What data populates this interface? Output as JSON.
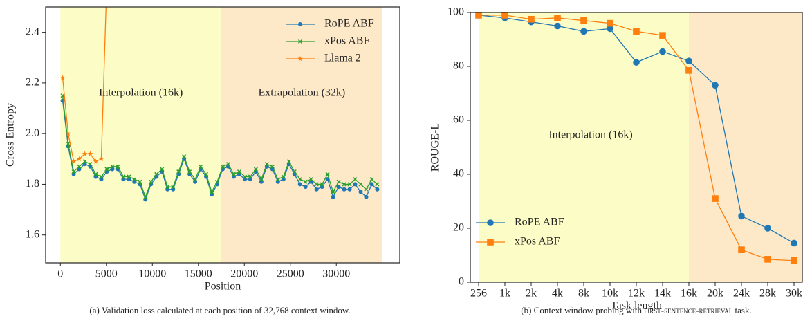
{
  "chart_data": [
    {
      "type": "line",
      "xlabel": "Position",
      "ylabel": "Cross Entropy",
      "caption": "(a) Validation loss calculated at each position of 32,768 context window.",
      "x": [
        250,
        850,
        1450,
        2050,
        2650,
        3250,
        3850,
        4450,
        5050,
        5650,
        6250,
        6850,
        7450,
        8050,
        8650,
        9250,
        9850,
        10450,
        11050,
        11650,
        12250,
        12850,
        13450,
        14050,
        14650,
        15250,
        15850,
        16450,
        17050,
        17650,
        18250,
        18850,
        19450,
        20050,
        20650,
        21250,
        21850,
        22450,
        23050,
        23650,
        24250,
        24850,
        25450,
        26050,
        26650,
        27250,
        27850,
        28450,
        29050,
        29650,
        30250,
        30850,
        31450,
        32050,
        32650,
        33250,
        33850,
        34450
      ],
      "series": [
        {
          "name": "RoPE ABF",
          "color": "#1f77b4",
          "marker": "dot",
          "values": [
            2.13,
            1.95,
            1.84,
            1.86,
            1.88,
            1.87,
            1.83,
            1.82,
            1.85,
            1.86,
            1.86,
            1.82,
            1.82,
            1.81,
            1.8,
            1.74,
            1.8,
            1.83,
            1.85,
            1.78,
            1.78,
            1.84,
            1.9,
            1.84,
            1.81,
            1.86,
            1.83,
            1.76,
            1.8,
            1.86,
            1.87,
            1.83,
            1.84,
            1.82,
            1.82,
            1.85,
            1.81,
            1.87,
            1.86,
            1.81,
            1.82,
            1.88,
            1.84,
            1.8,
            1.79,
            1.81,
            1.78,
            1.79,
            1.82,
            1.75,
            1.79,
            1.78,
            1.78,
            1.8,
            1.77,
            1.75,
            1.8,
            1.78
          ]
        },
        {
          "name": "xPos ABF",
          "color": "#2ca02c",
          "marker": "x",
          "values": [
            2.15,
            1.96,
            1.85,
            1.87,
            1.89,
            1.88,
            1.84,
            1.83,
            1.86,
            1.87,
            1.87,
            1.83,
            1.83,
            1.82,
            1.81,
            1.75,
            1.81,
            1.84,
            1.86,
            1.79,
            1.79,
            1.85,
            1.91,
            1.85,
            1.82,
            1.87,
            1.84,
            1.77,
            1.81,
            1.87,
            1.88,
            1.84,
            1.85,
            1.83,
            1.83,
            1.86,
            1.82,
            1.88,
            1.87,
            1.82,
            1.83,
            1.89,
            1.85,
            1.82,
            1.81,
            1.82,
            1.8,
            1.8,
            1.84,
            1.77,
            1.81,
            1.8,
            1.8,
            1.82,
            1.8,
            1.78,
            1.82,
            1.8
          ]
        },
        {
          "name": "Llama 2",
          "color": "#ff7f0e",
          "marker": "star",
          "values": [
            2.22,
            2.0,
            1.89,
            1.9,
            1.92,
            1.92,
            1.89,
            1.9,
            2.6,
            null,
            null,
            null,
            null,
            null,
            null,
            null,
            null,
            null,
            null,
            null,
            null,
            null,
            null,
            null,
            null,
            null,
            null,
            null,
            null,
            null,
            null,
            null,
            null,
            null,
            null,
            null,
            null,
            null,
            null,
            null,
            null,
            null,
            null,
            null,
            null,
            null,
            null,
            null,
            null,
            null,
            null,
            null,
            null,
            null,
            null,
            null,
            null,
            null
          ]
        }
      ],
      "spans": [
        {
          "label": "Interpolation (16k)",
          "from": 0,
          "to": 17500,
          "color": "#fcfcc6"
        },
        {
          "label": "Extrapolation (32k)",
          "from": 17500,
          "to": 35000,
          "color": "#fde8c8"
        }
      ],
      "xlim": [
        -1600,
        36900
      ],
      "ylim": [
        1.49,
        2.5
      ],
      "xticks": [
        0,
        5000,
        10000,
        15000,
        20000,
        25000,
        30000
      ],
      "yticks": [
        1.6,
        1.8,
        {
          "value": 2,
          "label": "2.0"
        },
        2.2,
        2.4
      ],
      "legend": "upper right"
    },
    {
      "type": "line",
      "xlabel": "Task length",
      "ylabel": "ROUGE-L",
      "caption_parts": [
        "(b) Context window probing with ",
        "first-sentence-retrieval",
        " task."
      ],
      "categories": [
        "256",
        "1k",
        "2k",
        "4k",
        "8k",
        "10k",
        "12k",
        "14k",
        "16k",
        "20k",
        "24k",
        "28k",
        "30k"
      ],
      "series": [
        {
          "name": "RoPE ABF",
          "color": "#1f77b4",
          "marker": "dot",
          "values": [
            99,
            98,
            96.5,
            95,
            93,
            94,
            81.5,
            85.5,
            82,
            73,
            24.5,
            20,
            14.5
          ]
        },
        {
          "name": "xPos ABF",
          "color": "#ff7f0e",
          "marker": "square",
          "values": [
            99,
            99,
            97.5,
            98,
            97,
            96,
            93,
            91.5,
            78.5,
            31,
            12,
            8.5,
            8
          ]
        }
      ],
      "spans": [
        {
          "label": "Interpolation (16k)",
          "from": "256",
          "to": "16k",
          "color": "#fcfcc6"
        },
        {
          "from": "16k",
          "to": "30k",
          "color": "#fde8c8"
        }
      ],
      "ylim": [
        0,
        100
      ],
      "yticks": [
        0,
        20,
        40,
        60,
        80,
        100
      ],
      "legend": "lower left"
    }
  ]
}
